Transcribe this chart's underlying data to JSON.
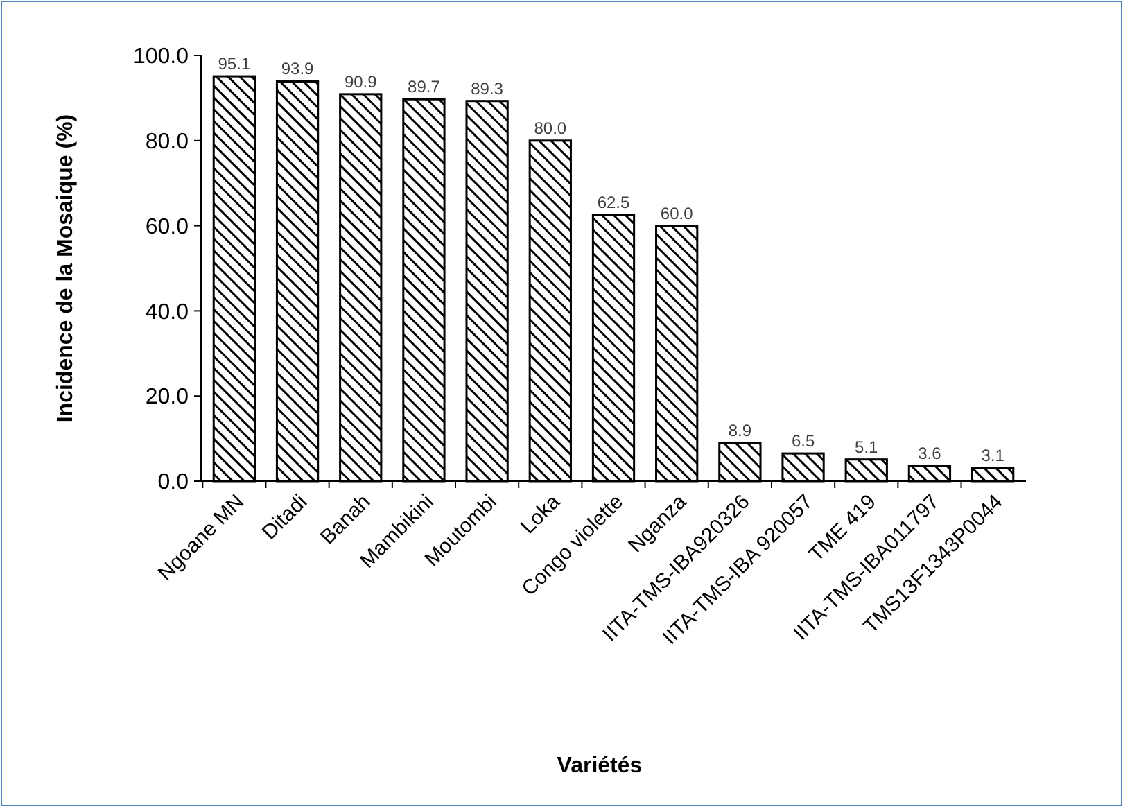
{
  "chart_data": {
    "type": "bar",
    "xlabel": "Variétés",
    "ylabel": "Incidence de la Mosaique (%)",
    "categories": [
      "Ngoane MN",
      "Ditadi",
      "Banah",
      "Mambikini",
      "Moutombi",
      "Loka",
      "Congo violette",
      "Nganza",
      "IITA-TMS-IBA920326",
      "IITA-TMS-IBA 920057",
      "TME 419",
      "IITA-TMS-IBA011797",
      "TMS13F1343P0044"
    ],
    "values": [
      95.1,
      93.9,
      90.9,
      89.7,
      89.3,
      80.0,
      62.5,
      60.0,
      8.9,
      6.5,
      5.1,
      3.6,
      3.1
    ],
    "value_labels": [
      "95.1",
      "93.9",
      "90.9",
      "89.7",
      "89.3",
      "80.0",
      "62.5",
      "60.0",
      "8.9",
      "6.5",
      "5.1",
      "3.6",
      "3.1"
    ],
    "color": "#000000",
    "ylim": [
      0,
      100
    ],
    "yticks": [
      {
        "value": 0,
        "label": "0.0"
      },
      {
        "value": 20,
        "label": "20.0"
      },
      {
        "value": 40,
        "label": "40.0"
      },
      {
        "value": 60,
        "label": "60.0"
      },
      {
        "value": 80,
        "label": "80.0"
      },
      {
        "value": 100,
        "label": "100.0"
      }
    ],
    "grid": false
  }
}
